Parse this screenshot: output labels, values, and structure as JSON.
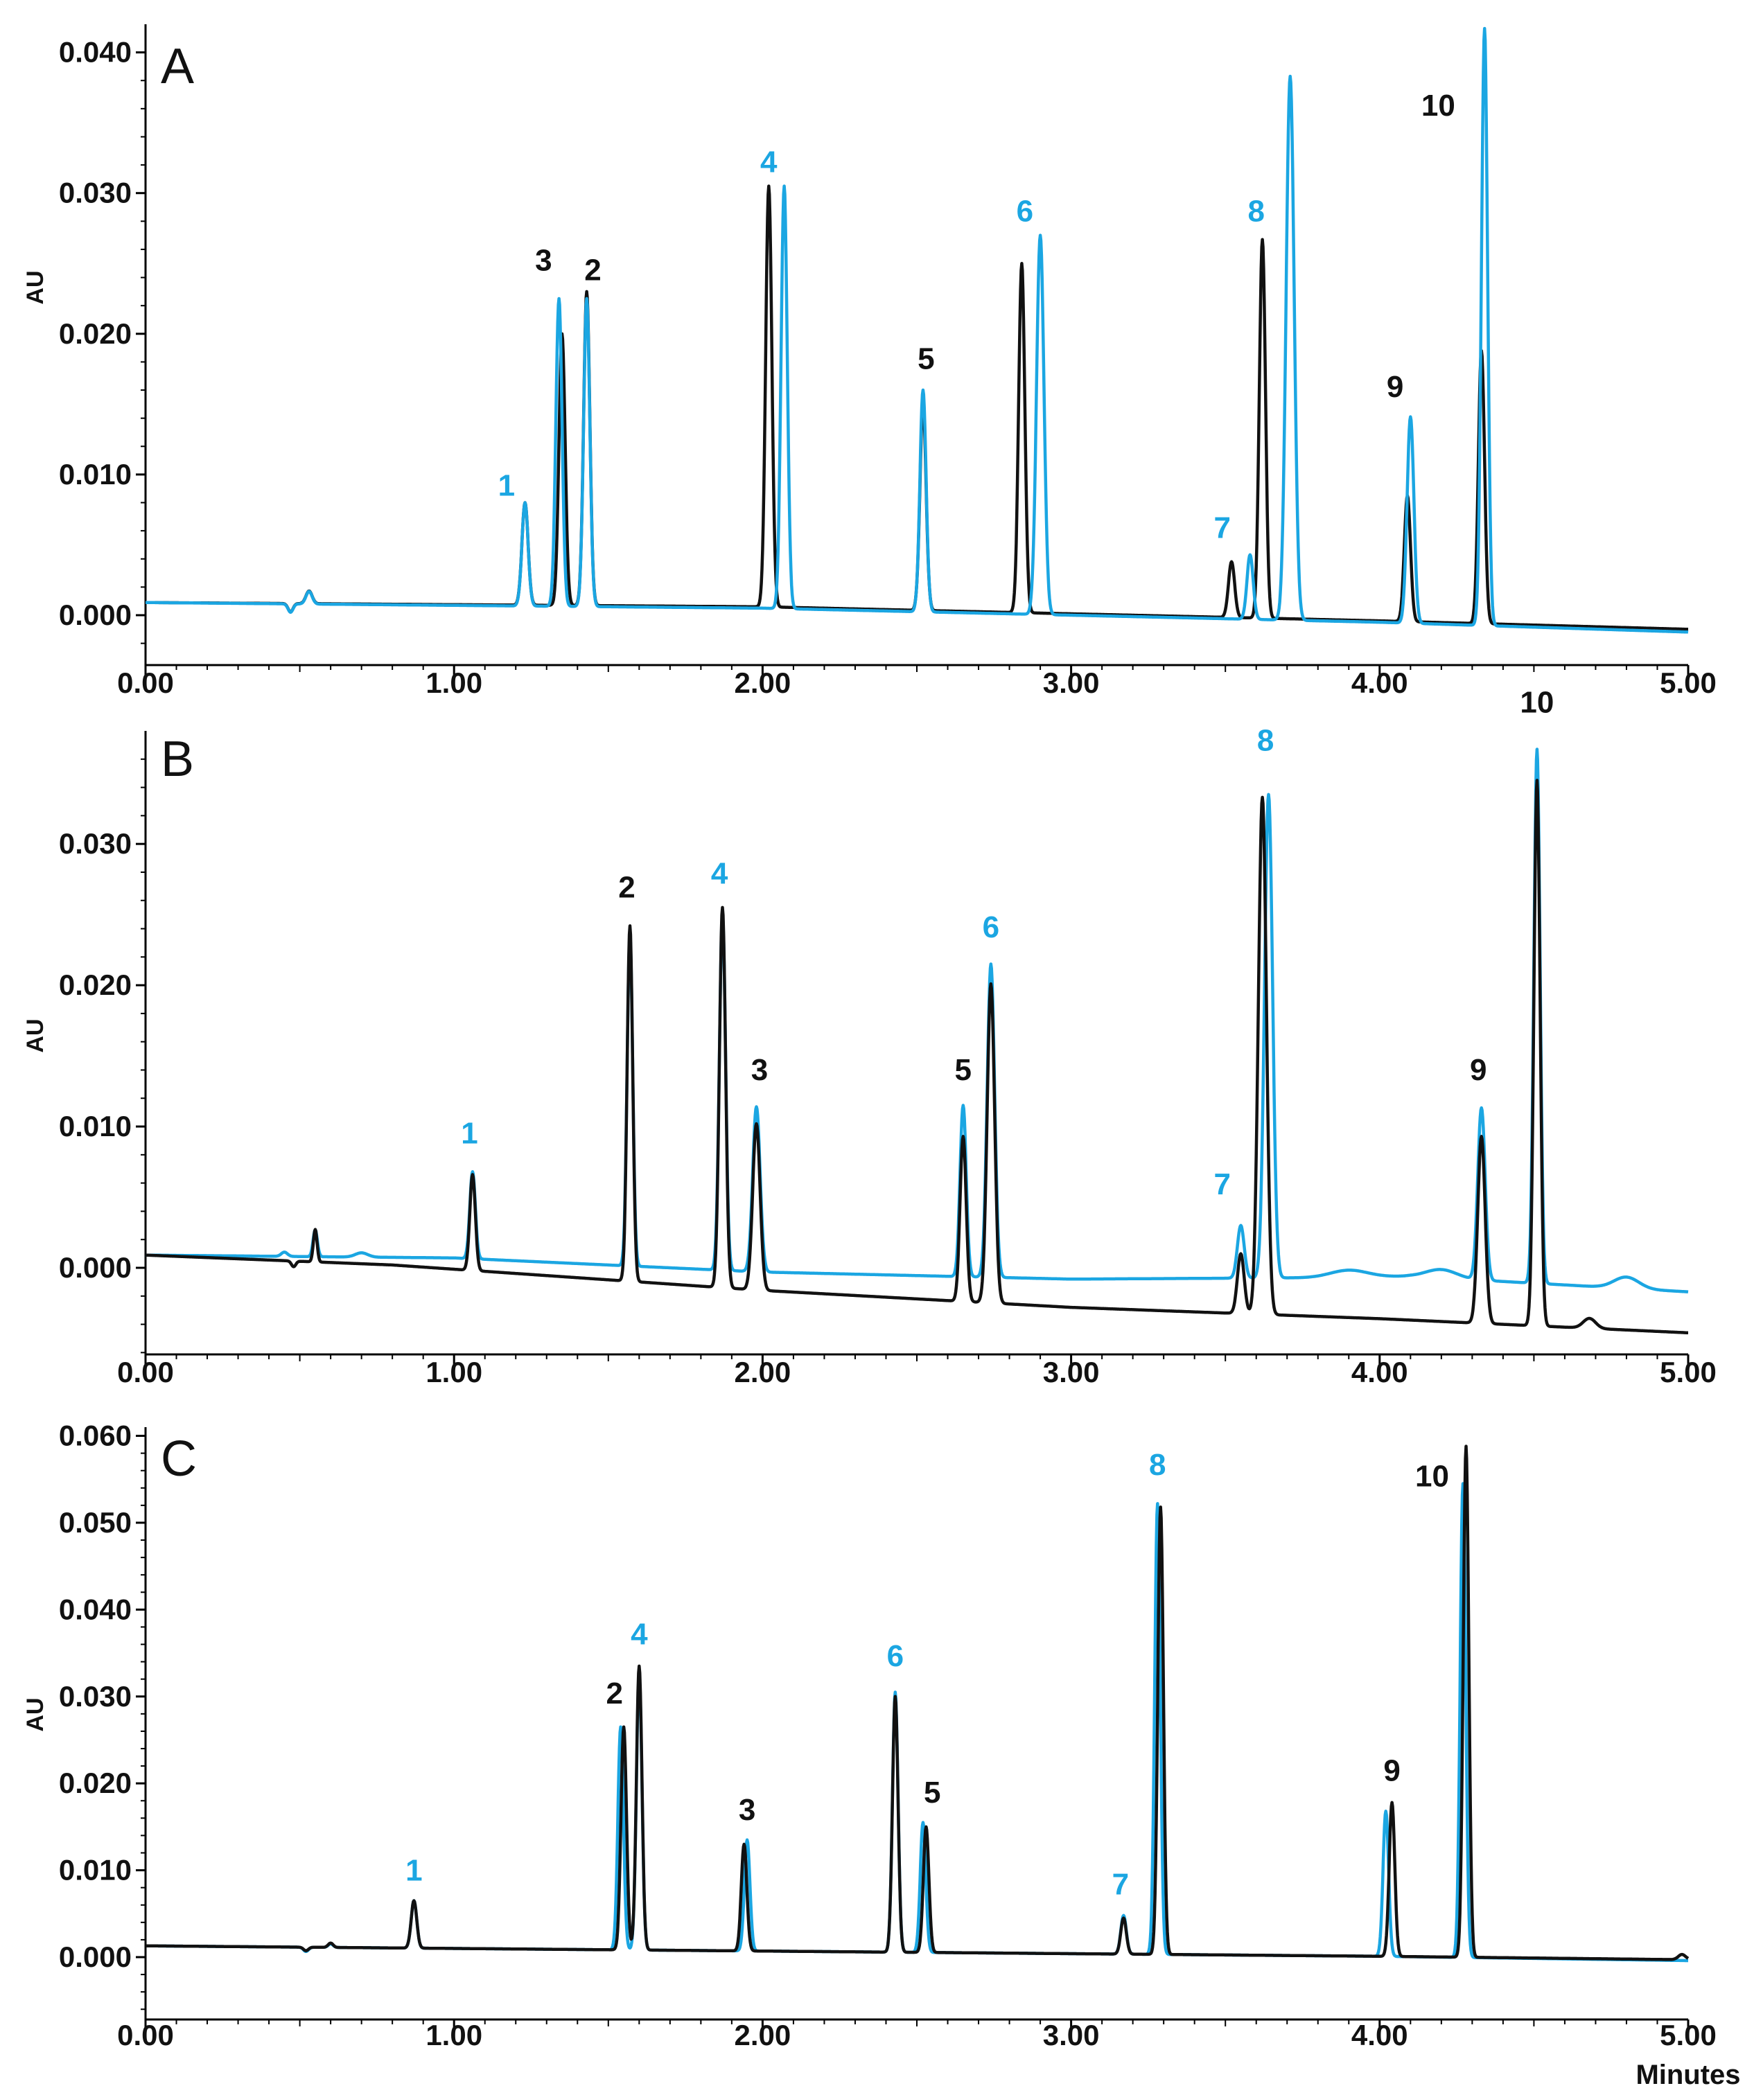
{
  "colors": {
    "blue": "#1BA6E2",
    "black": "#111111"
  },
  "chart_data": [
    {
      "type": "line",
      "panel": "A",
      "xlabel": "",
      "ylabel": "AU",
      "xlim": [
        0.0,
        5.0
      ],
      "ylim": [
        -0.003,
        0.042
      ],
      "xticks": [
        "0.00",
        "1.00",
        "2.00",
        "3.00",
        "4.00",
        "5.00"
      ],
      "yticks": [
        {
          "value": 0.0,
          "label": "0.000"
        },
        {
          "value": 0.01,
          "label": "0.010"
        },
        {
          "value": 0.02,
          "label": "0.020"
        },
        {
          "value": 0.03,
          "label": "0.030"
        },
        {
          "value": 0.04,
          "label": "0.040"
        }
      ],
      "series": [
        {
          "name": "black",
          "color": "black",
          "baseline": [
            [
              0.0,
              0.0009
            ],
            [
              2.0,
              0.0006
            ],
            [
              3.0,
              0.0001
            ],
            [
              4.0,
              -0.0004
            ],
            [
              5.0,
              -0.001
            ]
          ],
          "peaks": [
            [
              1.23,
              0.008,
              0.01
            ],
            [
              1.35,
              0.02,
              0.01
            ],
            [
              1.43,
              0.023,
              0.01
            ],
            [
              2.02,
              0.0305,
              0.01
            ],
            [
              2.52,
              0.015,
              0.01
            ],
            [
              2.84,
              0.025,
              0.01
            ],
            [
              3.52,
              0.0038,
              0.01
            ],
            [
              3.62,
              0.0267,
              0.01
            ],
            [
              4.09,
              0.0085,
              0.01
            ],
            [
              4.33,
              0.0188,
              0.01
            ]
          ],
          "disturbance": [
            [
              0.47,
              -0.0006,
              0.008
            ],
            [
              0.53,
              0.0009,
              0.01
            ]
          ]
        },
        {
          "name": "blue",
          "color": "blue",
          "baseline": [
            [
              0.0,
              0.0009
            ],
            [
              2.0,
              0.0005
            ],
            [
              3.0,
              0.0
            ],
            [
              4.0,
              -0.0005
            ],
            [
              5.0,
              -0.0012
            ]
          ],
          "peaks": [
            [
              1.23,
              0.008,
              0.01
            ],
            [
              1.34,
              0.0225,
              0.01
            ],
            [
              1.43,
              0.0225,
              0.01
            ],
            [
              2.07,
              0.0305,
              0.01
            ],
            [
              2.52,
              0.016,
              0.01
            ],
            [
              2.9,
              0.027,
              0.012
            ],
            [
              3.58,
              0.0043,
              0.01
            ],
            [
              3.71,
              0.0383,
              0.013
            ],
            [
              4.1,
              0.0141,
              0.011
            ],
            [
              4.34,
              0.0417,
              0.01
            ]
          ],
          "disturbance": [
            [
              0.47,
              -0.0006,
              0.008
            ],
            [
              0.53,
              0.0009,
              0.01
            ]
          ]
        }
      ],
      "peak_labels": [
        {
          "text": "1",
          "x": 1.17,
          "y": 0.0085,
          "color": "blue"
        },
        {
          "text": "3",
          "x": 1.29,
          "y": 0.0245,
          "color": "black"
        },
        {
          "text": "2",
          "x": 1.45,
          "y": 0.0238,
          "color": "black"
        },
        {
          "text": "4",
          "x": 2.02,
          "y": 0.0315,
          "color": "blue"
        },
        {
          "text": "5",
          "x": 2.53,
          "y": 0.0175,
          "color": "black"
        },
        {
          "text": "6",
          "x": 2.85,
          "y": 0.028,
          "color": "blue"
        },
        {
          "text": "7",
          "x": 3.49,
          "y": 0.0055,
          "color": "blue"
        },
        {
          "text": "8",
          "x": 3.6,
          "y": 0.028,
          "color": "blue"
        },
        {
          "text": "9",
          "x": 4.05,
          "y": 0.0155,
          "color": "black"
        },
        {
          "text": "10",
          "x": 4.19,
          "y": 0.0355,
          "color": "black"
        }
      ]
    },
    {
      "type": "line",
      "panel": "B",
      "xlabel": "",
      "ylabel": "AU",
      "xlim": [
        0.0,
        5.0
      ],
      "ylim": [
        -0.0066,
        0.038
      ],
      "xticks": [
        "0.00",
        "1.00",
        "2.00",
        "3.00",
        "4.00",
        "5.00"
      ],
      "yticks": [
        {
          "value": 0.0,
          "label": "0.000"
        },
        {
          "value": 0.01,
          "label": "0.010"
        },
        {
          "value": 0.02,
          "label": "0.020"
        },
        {
          "value": 0.03,
          "label": "0.030"
        }
      ],
      "series": [
        {
          "name": "blue",
          "color": "blue",
          "baseline": [
            [
              0.0,
              0.0009
            ],
            [
              1.0,
              0.0007
            ],
            [
              2.0,
              -0.0003
            ],
            [
              3.0,
              -0.0008
            ],
            [
              3.8,
              -0.0007
            ],
            [
              4.1,
              -0.0006
            ],
            [
              5.0,
              -0.0017
            ]
          ],
          "peaks": [
            [
              1.06,
              0.0068,
              0.009
            ],
            [
              1.57,
              0.0236,
              0.009
            ],
            [
              1.87,
              0.025,
              0.01
            ],
            [
              1.98,
              0.0114,
              0.012
            ],
            [
              2.65,
              0.0115,
              0.01
            ],
            [
              2.74,
              0.0215,
              0.012
            ],
            [
              3.55,
              0.003,
              0.011
            ],
            [
              3.64,
              0.0335,
              0.013
            ],
            [
              4.33,
              0.0113,
              0.012
            ],
            [
              4.51,
              0.0367,
              0.01
            ]
          ],
          "disturbance": [
            [
              0.45,
              0.0003,
              0.01
            ],
            [
              0.55,
              0.0019,
              0.007
            ],
            [
              0.7,
              0.0003,
              0.02
            ],
            [
              3.9,
              0.0005,
              0.06
            ],
            [
              4.2,
              0.0006,
              0.05
            ],
            [
              4.8,
              0.0008,
              0.04
            ]
          ]
        },
        {
          "name": "black",
          "color": "black",
          "baseline": [
            [
              0.0,
              0.0009
            ],
            [
              0.8,
              0.0002
            ],
            [
              2.0,
              -0.0016
            ],
            [
              3.0,
              -0.0028
            ],
            [
              4.0,
              -0.0036
            ],
            [
              5.0,
              -0.0046
            ]
          ],
          "peaks": [
            [
              1.06,
              0.0066,
              0.009
            ],
            [
              1.57,
              0.0242,
              0.009
            ],
            [
              1.87,
              0.0255,
              0.01
            ],
            [
              1.98,
              0.0102,
              0.012
            ],
            [
              2.65,
              0.0093,
              0.01
            ],
            [
              2.74,
              0.0201,
              0.012
            ],
            [
              3.55,
              0.001,
              0.011
            ],
            [
              3.62,
              0.0333,
              0.013
            ],
            [
              4.33,
              0.0093,
              0.012
            ],
            [
              4.51,
              0.0345,
              0.01
            ]
          ],
          "disturbance": [
            [
              0.48,
              -0.0004,
              0.007
            ],
            [
              0.55,
              0.0023,
              0.006
            ],
            [
              4.68,
              0.0007,
              0.02
            ]
          ]
        }
      ],
      "peak_labels": [
        {
          "text": "1",
          "x": 1.05,
          "y": 0.0088,
          "color": "blue"
        },
        {
          "text": "2",
          "x": 1.56,
          "y": 0.0262,
          "color": "black"
        },
        {
          "text": "4",
          "x": 1.86,
          "y": 0.0272,
          "color": "blue"
        },
        {
          "text": "3",
          "x": 1.99,
          "y": 0.0133,
          "color": "black"
        },
        {
          "text": "5",
          "x": 2.65,
          "y": 0.0133,
          "color": "black"
        },
        {
          "text": "6",
          "x": 2.74,
          "y": 0.0234,
          "color": "blue"
        },
        {
          "text": "7",
          "x": 3.49,
          "y": 0.0052,
          "color": "blue"
        },
        {
          "text": "8",
          "x": 3.63,
          "y": 0.0366,
          "color": "blue"
        },
        {
          "text": "9",
          "x": 4.32,
          "y": 0.0133,
          "color": "black"
        },
        {
          "text": "10",
          "x": 4.51,
          "y": 0.0393,
          "color": "black"
        }
      ]
    },
    {
      "type": "line",
      "panel": "C",
      "xlabel": "Minutes",
      "ylabel": "AU",
      "xlim": [
        0.0,
        5.0
      ],
      "ylim": [
        -0.004,
        0.061
      ],
      "xticks": [
        "0.00",
        "1.00",
        "2.00",
        "3.00",
        "4.00",
        "5.00"
      ],
      "yticks": [
        {
          "value": 0.0,
          "label": "0.000"
        },
        {
          "value": 0.01,
          "label": "0.010"
        },
        {
          "value": 0.02,
          "label": "0.020"
        },
        {
          "value": 0.03,
          "label": "0.030"
        },
        {
          "value": 0.04,
          "label": "0.040"
        },
        {
          "value": 0.05,
          "label": "0.050"
        },
        {
          "value": 0.06,
          "label": "0.060"
        }
      ],
      "series": [
        {
          "name": "blue",
          "color": "blue",
          "baseline": [
            [
              0.0,
              0.0013
            ],
            [
              2.0,
              0.0007
            ],
            [
              4.0,
              0.0001
            ],
            [
              5.0,
              -0.0004
            ]
          ],
          "peaks": [
            [
              0.87,
              0.0065,
              0.009
            ],
            [
              1.54,
              0.0265,
              0.009
            ],
            [
              1.6,
              0.0325,
              0.009
            ],
            [
              1.95,
              0.0135,
              0.009
            ],
            [
              2.43,
              0.0305,
              0.009
            ],
            [
              2.52,
              0.0155,
              0.009
            ],
            [
              3.17,
              0.0048,
              0.009
            ],
            [
              3.28,
              0.0522,
              0.009
            ],
            [
              4.02,
              0.0168,
              0.009
            ],
            [
              4.27,
              0.0545,
              0.009
            ]
          ],
          "disturbance": [
            [
              0.52,
              -0.0005,
              0.008
            ],
            [
              0.6,
              0.0004,
              0.008
            ]
          ]
        },
        {
          "name": "black",
          "color": "black",
          "baseline": [
            [
              0.0,
              0.0013
            ],
            [
              2.0,
              0.0007
            ],
            [
              4.0,
              0.0001
            ],
            [
              5.0,
              -0.0003
            ]
          ],
          "peaks": [
            [
              0.87,
              0.0065,
              0.009
            ],
            [
              1.55,
              0.0265,
              0.009
            ],
            [
              1.6,
              0.0335,
              0.009
            ],
            [
              1.94,
              0.013,
              0.009
            ],
            [
              2.43,
              0.03,
              0.009
            ],
            [
              2.53,
              0.015,
              0.009
            ],
            [
              3.17,
              0.0045,
              0.009
            ],
            [
              3.29,
              0.0518,
              0.009
            ],
            [
              4.04,
              0.0178,
              0.009
            ],
            [
              4.28,
              0.0588,
              0.009
            ]
          ],
          "disturbance": [
            [
              0.52,
              -0.0004,
              0.008
            ],
            [
              0.6,
              0.0005,
              0.008
            ],
            [
              4.98,
              0.0006,
              0.012
            ]
          ]
        }
      ],
      "peak_labels": [
        {
          "text": "1",
          "x": 0.87,
          "y": 0.0088,
          "color": "blue"
        },
        {
          "text": "2",
          "x": 1.52,
          "y": 0.0292,
          "color": "black"
        },
        {
          "text": "4",
          "x": 1.6,
          "y": 0.036,
          "color": "blue"
        },
        {
          "text": "3",
          "x": 1.95,
          "y": 0.0158,
          "color": "black"
        },
        {
          "text": "6",
          "x": 2.43,
          "y": 0.0335,
          "color": "blue"
        },
        {
          "text": "5",
          "x": 2.55,
          "y": 0.0178,
          "color": "black"
        },
        {
          "text": "7",
          "x": 3.16,
          "y": 0.0072,
          "color": "blue"
        },
        {
          "text": "8",
          "x": 3.28,
          "y": 0.0555,
          "color": "blue"
        },
        {
          "text": "9",
          "x": 4.04,
          "y": 0.0203,
          "color": "black"
        },
        {
          "text": "10",
          "x": 4.17,
          "y": 0.0542,
          "color": "black"
        }
      ]
    }
  ]
}
